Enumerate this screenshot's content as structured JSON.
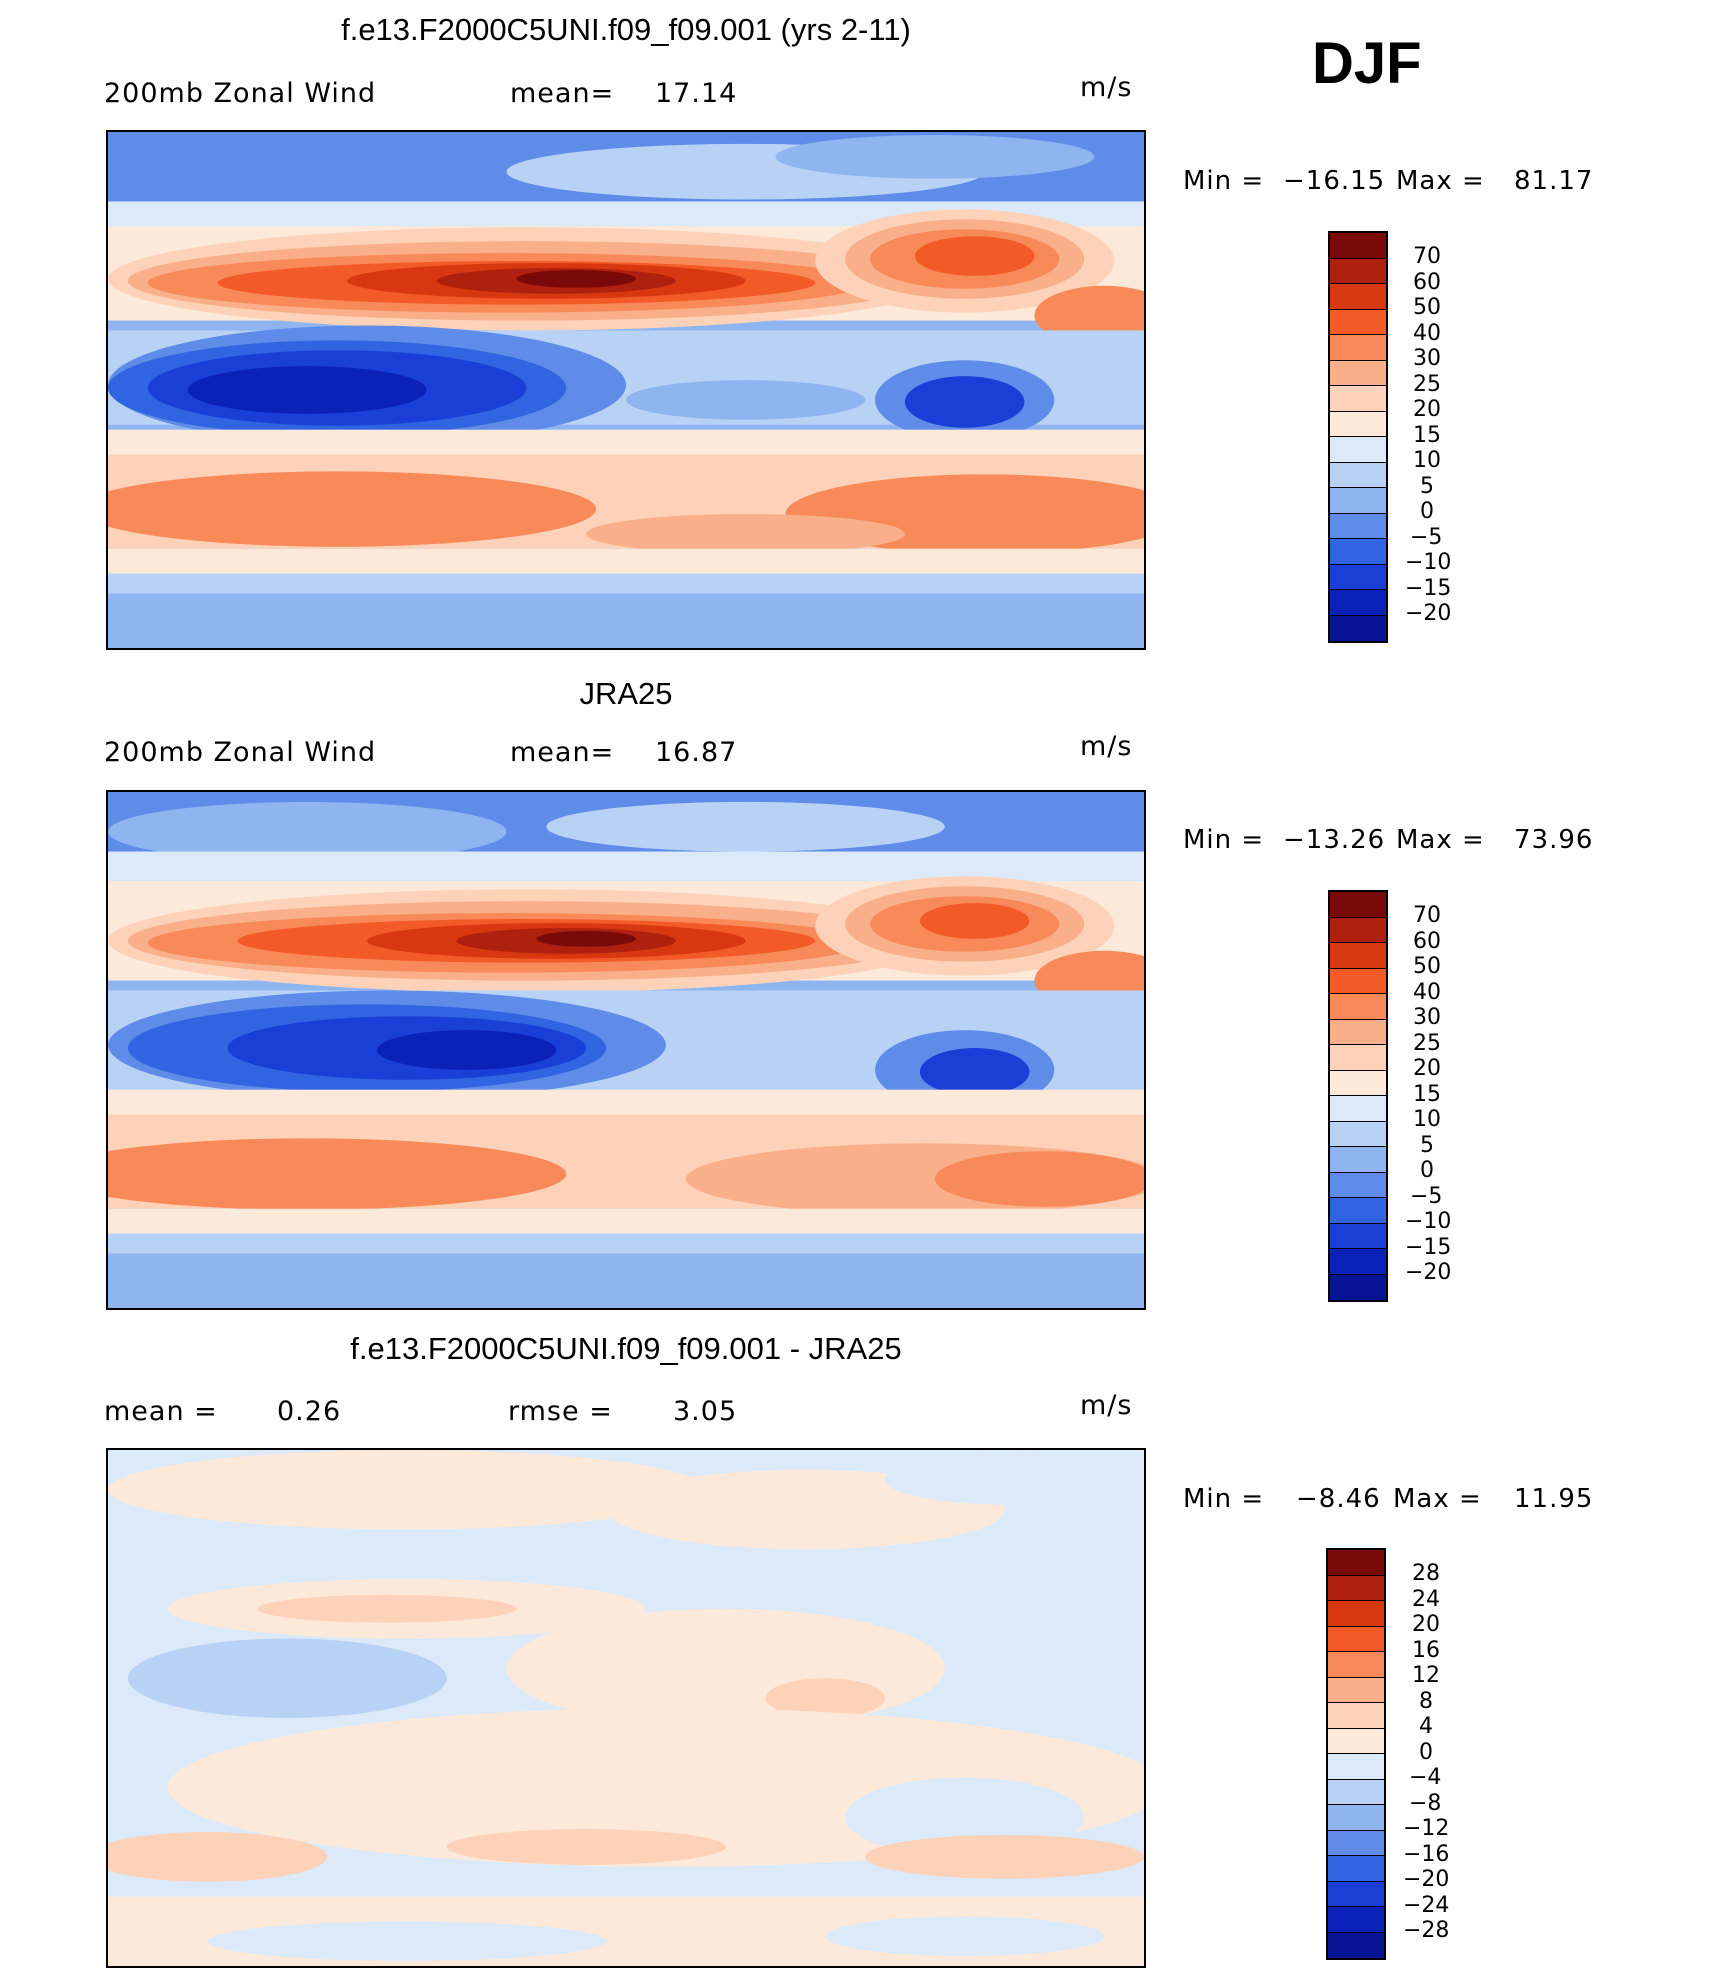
{
  "season": "DJF",
  "panels": [
    {
      "title": "f.e13.F2000C5UNI.f09_f09.001 (yrs 2-11)",
      "left_label": "200mb Zonal Wind",
      "stat_label": "mean=",
      "stat_value": "17.14",
      "units": "m/s",
      "min_label": "Min =",
      "min_value": "−16.15",
      "max_label": "Max =",
      "max_value": "81.17",
      "colorbar_labels": [
        "70",
        "60",
        "50",
        "40",
        "30",
        "25",
        "20",
        "15",
        "10",
        "5",
        "0",
        "−5",
        "−10",
        "−15",
        "−20"
      ]
    },
    {
      "title": "JRA25",
      "left_label": "200mb Zonal Wind",
      "stat_label": "mean=",
      "stat_value": "16.87",
      "units": "m/s",
      "min_label": "Min =",
      "min_value": "−13.26",
      "max_label": "Max =",
      "max_value": "73.96",
      "colorbar_labels": [
        "70",
        "60",
        "50",
        "40",
        "30",
        "25",
        "20",
        "15",
        "10",
        "5",
        "0",
        "−5",
        "−10",
        "−15",
        "−20"
      ]
    },
    {
      "title": "f.e13.F2000C5UNI.f09_f09.001 - JRA25",
      "left_label": "mean =",
      "left_value": "0.26",
      "stat_label": "rmse =",
      "stat_value": "3.05",
      "units": "m/s",
      "min_label": "Min =",
      "min_value": "−8.46",
      "max_label": "Max =",
      "max_value": "11.95",
      "colorbar_labels": [
        "28",
        "24",
        "20",
        "16",
        "12",
        "8",
        "4",
        "0",
        "−4",
        "−8",
        "−12",
        "−16",
        "−20",
        "−24",
        "−28"
      ]
    }
  ],
  "colors": {
    "field_scale": [
      "#7a0a0a",
      "#b0200f",
      "#d8380f",
      "#f25a28",
      "#f88a5a",
      "#f9b08a",
      "#fdd2b8",
      "#fde9d9",
      "#dbe9f8",
      "#b7d2f4",
      "#8eb5f0",
      "#5e8ce8",
      "#3064e0",
      "#1a3fd6",
      "#0a22b8",
      "#061494"
    ],
    "diff_scale": [
      "#7a0a0a",
      "#b0200f",
      "#d8380f",
      "#f25a28",
      "#f88a5a",
      "#f9b08a",
      "#fdd2b8",
      "#fde9d9",
      "#dbe9f8",
      "#b7d2f4",
      "#8eb5f0",
      "#5e8ce8",
      "#3064e0",
      "#1a3fd6",
      "#0a22b8",
      "#061494"
    ]
  }
}
